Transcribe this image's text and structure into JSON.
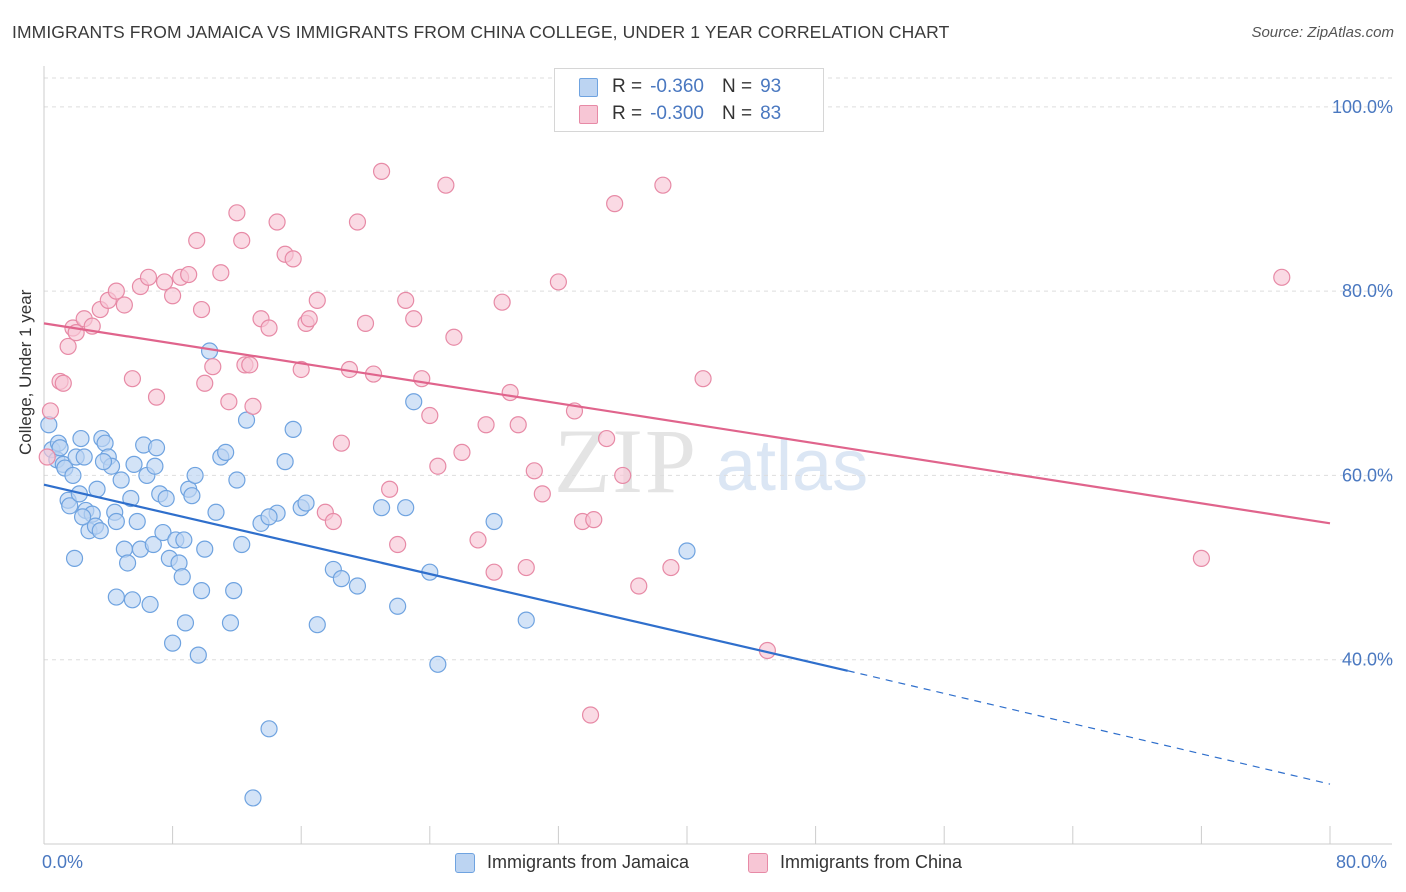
{
  "title": "IMMIGRANTS FROM JAMAICA VS IMMIGRANTS FROM CHINA COLLEGE, UNDER 1 YEAR CORRELATION CHART",
  "source": "Source: ZipAtlas.com",
  "watermark": {
    "zip": "ZIP",
    "atlas": "atlas"
  },
  "legend": {
    "rows": [
      {
        "r_label": "R =",
        "r_value": "-0.360",
        "n_label": "N =",
        "n_value": "93"
      },
      {
        "r_label": "R =",
        "r_value": "-0.300",
        "n_label": "N =",
        "n_value": "83"
      }
    ]
  },
  "chart_data": {
    "type": "scatter",
    "title": "IMMIGRANTS FROM JAMAICA VS IMMIGRANTS FROM CHINA COLLEGE, UNDER 1 YEAR CORRELATION CHART",
    "xlabel": "",
    "ylabel": "College, Under 1 year",
    "xlim": [
      0,
      80
    ],
    "ylim": [
      20,
      104
    ],
    "x_tick_labels": [
      "0.0%",
      "80.0%"
    ],
    "y_ticks": [
      40,
      60,
      80,
      100
    ],
    "y_tick_labels": [
      "40.0%",
      "60.0%",
      "80.0%",
      "100.0%"
    ],
    "series": [
      {
        "name": "Immigrants from Jamaica",
        "color": "#6fa3e0",
        "fill": "#bcd4f2",
        "R": -0.36,
        "N": 93,
        "trend": {
          "x0": 0,
          "y0": 59.0,
          "x1": 50,
          "y1": 38.8,
          "dash_x1": 80,
          "dash_y1": 26.5
        },
        "points": [
          [
            0.3,
            65.5
          ],
          [
            0.5,
            62.8
          ],
          [
            0.8,
            61.7
          ],
          [
            0.9,
            63.5
          ],
          [
            1.0,
            63.0
          ],
          [
            1.2,
            61.2
          ],
          [
            1.3,
            60.8
          ],
          [
            1.5,
            57.3
          ],
          [
            1.6,
            56.7
          ],
          [
            1.8,
            60.0
          ],
          [
            2.0,
            62.0
          ],
          [
            2.2,
            58.0
          ],
          [
            2.3,
            64.0
          ],
          [
            2.5,
            62.0
          ],
          [
            2.6,
            56.2
          ],
          [
            2.8,
            54.0
          ],
          [
            3.0,
            55.8
          ],
          [
            3.2,
            54.5
          ],
          [
            3.3,
            58.5
          ],
          [
            3.5,
            54.0
          ],
          [
            3.6,
            64.0
          ],
          [
            3.8,
            63.5
          ],
          [
            4.0,
            62.0
          ],
          [
            4.2,
            61.0
          ],
          [
            4.4,
            56.0
          ],
          [
            4.5,
            55.0
          ],
          [
            4.8,
            59.5
          ],
          [
            5.0,
            52.0
          ],
          [
            5.2,
            50.5
          ],
          [
            5.4,
            57.5
          ],
          [
            5.6,
            61.2
          ],
          [
            5.8,
            55.0
          ],
          [
            6.0,
            52.0
          ],
          [
            6.2,
            63.3
          ],
          [
            6.4,
            60.0
          ],
          [
            6.6,
            46.0
          ],
          [
            6.8,
            52.5
          ],
          [
            7.0,
            63.0
          ],
          [
            7.2,
            58.0
          ],
          [
            7.4,
            53.8
          ],
          [
            7.6,
            57.5
          ],
          [
            7.8,
            51.0
          ],
          [
            8.0,
            41.8
          ],
          [
            8.2,
            53.0
          ],
          [
            8.4,
            50.5
          ],
          [
            8.6,
            49.0
          ],
          [
            8.8,
            44.0
          ],
          [
            9.0,
            58.5
          ],
          [
            9.2,
            57.8
          ],
          [
            9.4,
            60.0
          ],
          [
            9.6,
            40.5
          ],
          [
            9.8,
            47.5
          ],
          [
            10.0,
            52.0
          ],
          [
            10.3,
            73.5
          ],
          [
            10.7,
            56.0
          ],
          [
            11.0,
            62.0
          ],
          [
            11.3,
            62.5
          ],
          [
            11.6,
            44.0
          ],
          [
            11.8,
            47.5
          ],
          [
            12.0,
            59.5
          ],
          [
            12.3,
            52.5
          ],
          [
            12.6,
            66.0
          ],
          [
            13.0,
            25.0
          ],
          [
            13.5,
            54.8
          ],
          [
            14.0,
            32.5
          ],
          [
            14.5,
            55.9
          ],
          [
            15.0,
            61.5
          ],
          [
            14.0,
            55.5
          ],
          [
            15.5,
            65.0
          ],
          [
            16.0,
            56.5
          ],
          [
            16.3,
            57.0
          ],
          [
            17.0,
            43.8
          ],
          [
            18.0,
            49.8
          ],
          [
            18.5,
            48.8
          ],
          [
            19.5,
            48.0
          ],
          [
            21.0,
            56.5
          ],
          [
            22.0,
            45.8
          ],
          [
            22.5,
            56.5
          ],
          [
            23.0,
            68.0
          ],
          [
            24.0,
            49.5
          ],
          [
            24.5,
            39.5
          ],
          [
            28.0,
            55.0
          ],
          [
            30.0,
            44.3
          ],
          [
            40.0,
            51.8
          ],
          [
            4.5,
            46.8
          ],
          [
            5.5,
            46.5
          ],
          [
            3.7,
            61.5
          ],
          [
            2.4,
            55.5
          ],
          [
            1.9,
            51.0
          ],
          [
            6.9,
            61.0
          ],
          [
            8.7,
            53.0
          ]
        ]
      },
      {
        "name": "Immigrants from China",
        "color": "#e78aa6",
        "fill": "#f7c6d5",
        "R": -0.3,
        "N": 83,
        "trend": {
          "x0": 0,
          "y0": 76.5,
          "x1": 80,
          "y1": 54.8
        },
        "points": [
          [
            0.2,
            62.0
          ],
          [
            0.4,
            67.0
          ],
          [
            1.0,
            70.2
          ],
          [
            1.2,
            70.0
          ],
          [
            1.5,
            74.0
          ],
          [
            1.8,
            76.0
          ],
          [
            2.0,
            75.5
          ],
          [
            2.5,
            77.0
          ],
          [
            3.0,
            76.2
          ],
          [
            3.5,
            78.0
          ],
          [
            4.0,
            79.0
          ],
          [
            4.5,
            80.0
          ],
          [
            5.0,
            78.5
          ],
          [
            5.5,
            70.5
          ],
          [
            6.0,
            80.5
          ],
          [
            6.5,
            81.5
          ],
          [
            7.0,
            68.5
          ],
          [
            7.5,
            81.0
          ],
          [
            8.0,
            79.5
          ],
          [
            8.5,
            81.5
          ],
          [
            9.0,
            81.8
          ],
          [
            9.5,
            85.5
          ],
          [
            9.8,
            78.0
          ],
          [
            10.0,
            70.0
          ],
          [
            10.5,
            71.8
          ],
          [
            11.0,
            82.0
          ],
          [
            11.5,
            68.0
          ],
          [
            12.0,
            88.5
          ],
          [
            12.3,
            85.5
          ],
          [
            12.5,
            72.0
          ],
          [
            12.8,
            72.0
          ],
          [
            13.0,
            67.5
          ],
          [
            13.5,
            77.0
          ],
          [
            14.0,
            76.0
          ],
          [
            14.5,
            87.5
          ],
          [
            15.0,
            84.0
          ],
          [
            15.5,
            83.5
          ],
          [
            16.0,
            71.5
          ],
          [
            16.3,
            76.5
          ],
          [
            16.5,
            77.0
          ],
          [
            17.0,
            79.0
          ],
          [
            17.5,
            56.0
          ],
          [
            18.0,
            55.0
          ],
          [
            18.5,
            63.5
          ],
          [
            19.0,
            71.5
          ],
          [
            19.5,
            87.5
          ],
          [
            20.0,
            76.5
          ],
          [
            20.5,
            71.0
          ],
          [
            21.0,
            93.0
          ],
          [
            21.5,
            58.5
          ],
          [
            22.0,
            52.5
          ],
          [
            22.5,
            79.0
          ],
          [
            23.0,
            77.0
          ],
          [
            23.5,
            70.5
          ],
          [
            24.0,
            66.5
          ],
          [
            24.5,
            61.0
          ],
          [
            25.0,
            91.5
          ],
          [
            25.5,
            75.0
          ],
          [
            26.0,
            62.5
          ],
          [
            27.0,
            53.0
          ],
          [
            27.5,
            65.5
          ],
          [
            28.0,
            49.5
          ],
          [
            28.5,
            78.8
          ],
          [
            29.0,
            69.0
          ],
          [
            29.5,
            65.5
          ],
          [
            30.0,
            50.0
          ],
          [
            30.5,
            60.5
          ],
          [
            31.0,
            58.0
          ],
          [
            32.0,
            81.0
          ],
          [
            33.0,
            67.0
          ],
          [
            33.5,
            55.0
          ],
          [
            34.0,
            34.0
          ],
          [
            35.0,
            64.0
          ],
          [
            35.5,
            89.5
          ],
          [
            36.0,
            60.0
          ],
          [
            37.0,
            48.0
          ],
          [
            38.5,
            91.5
          ],
          [
            39.0,
            50.0
          ],
          [
            41.0,
            70.5
          ],
          [
            45.0,
            41.0
          ],
          [
            72.0,
            51.0
          ],
          [
            77.0,
            81.5
          ],
          [
            34.2,
            55.2
          ]
        ]
      }
    ]
  },
  "axes": {
    "y_label": "College, Under 1 year",
    "x_left_label": "0.0%",
    "x_right_label": "80.0%"
  },
  "bottom_legend": {
    "items": [
      "Immigrants from Jamaica",
      "Immigrants from China"
    ]
  },
  "colors": {
    "blue_line": "#2f6fcc",
    "pink_line": "#e0648c",
    "blue_point_stroke": "#6fa3e0",
    "blue_point_fill": "#bcd4f2",
    "pink_point_stroke": "#e78aa6",
    "pink_point_fill": "#f7c6d5",
    "grid": "#dddddd",
    "tick_label": "#4a78c0"
  }
}
